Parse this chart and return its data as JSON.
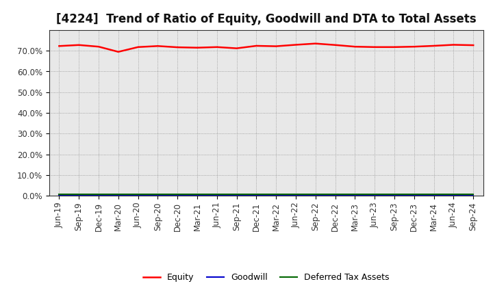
{
  "title": "[4224]  Trend of Ratio of Equity, Goodwill and DTA to Total Assets",
  "x_labels": [
    "Jun-19",
    "Sep-19",
    "Dec-19",
    "Mar-20",
    "Jun-20",
    "Sep-20",
    "Dec-20",
    "Mar-21",
    "Jun-21",
    "Sep-21",
    "Dec-21",
    "Mar-22",
    "Jun-22",
    "Sep-22",
    "Dec-22",
    "Mar-23",
    "Jun-23",
    "Sep-23",
    "Dec-23",
    "Mar-24",
    "Jun-24",
    "Sep-24"
  ],
  "equity": [
    72.3,
    72.8,
    72.0,
    69.5,
    71.8,
    72.3,
    71.7,
    71.5,
    71.8,
    71.2,
    72.4,
    72.2,
    72.9,
    73.5,
    72.8,
    72.0,
    71.8,
    71.8,
    72.0,
    72.4,
    72.9,
    72.7
  ],
  "goodwill": [
    0.0,
    0.0,
    0.0,
    0.0,
    0.0,
    0.0,
    0.0,
    0.0,
    0.0,
    0.0,
    0.0,
    0.0,
    0.0,
    0.0,
    0.0,
    0.0,
    0.0,
    0.0,
    0.0,
    0.0,
    0.0,
    0.0
  ],
  "dta": [
    0.8,
    0.8,
    0.8,
    0.8,
    0.8,
    0.8,
    0.8,
    0.8,
    0.8,
    0.8,
    0.8,
    0.8,
    0.8,
    0.8,
    0.8,
    0.8,
    0.8,
    0.8,
    0.8,
    0.8,
    0.8,
    0.8
  ],
  "equity_color": "#ff0000",
  "goodwill_color": "#0000cc",
  "dta_color": "#006600",
  "plot_bg_color": "#e8e8e8",
  "fig_bg_color": "#ffffff",
  "grid_color": "#555555",
  "ylim": [
    0,
    80
  ],
  "yticks": [
    0,
    10,
    20,
    30,
    40,
    50,
    60,
    70
  ],
  "ytick_labels": [
    "0.0%",
    "10.0%",
    "20.0%",
    "30.0%",
    "40.0%",
    "50.0%",
    "60.0%",
    "70.0%"
  ],
  "title_fontsize": 12,
  "tick_fontsize": 8.5,
  "legend_fontsize": 9
}
